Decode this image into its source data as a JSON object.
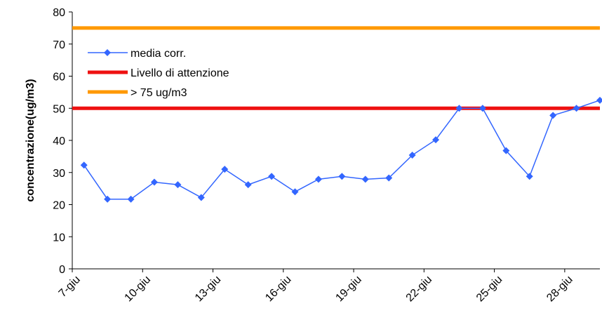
{
  "chart_data": {
    "type": "line",
    "y_label": "concentrazione(ug/m3)",
    "categories": [
      "7-giu",
      null,
      null,
      "10-giu",
      null,
      null,
      "13-giu",
      null,
      null,
      "16-giu",
      null,
      null,
      "19-giu",
      null,
      null,
      "22-giu",
      null,
      null,
      "25-giu",
      null,
      null,
      "28-giu",
      null
    ],
    "series": [
      {
        "name": "media corr.",
        "color": "#3366ff",
        "marker": "diamond",
        "values": [
          32.3,
          21.7,
          21.7,
          27,
          26.2,
          22.2,
          31,
          26.2,
          28.8,
          24,
          27.9,
          28.8,
          27.9,
          28.3,
          35.4,
          40.2,
          50,
          50,
          36.8,
          28.8,
          47.8,
          50,
          52.5
        ]
      },
      {
        "name": "Livello di attenzione",
        "color": "#ee1111",
        "values": [
          50,
          50,
          50,
          50,
          50,
          50,
          50,
          50,
          50,
          50,
          50,
          50,
          50,
          50,
          50,
          50,
          50,
          50,
          50,
          50,
          50,
          50,
          50
        ]
      },
      {
        "name": "> 75 ug/m3",
        "color": "#ff9900",
        "values": [
          75,
          75,
          75,
          75,
          75,
          75,
          75,
          75,
          75,
          75,
          75,
          75,
          75,
          75,
          75,
          75,
          75,
          75,
          75,
          75,
          75,
          75,
          75
        ]
      }
    ],
    "ylim": [
      0,
      80
    ],
    "yticks": [
      0,
      10,
      20,
      30,
      40,
      50,
      60,
      70,
      80
    ]
  }
}
